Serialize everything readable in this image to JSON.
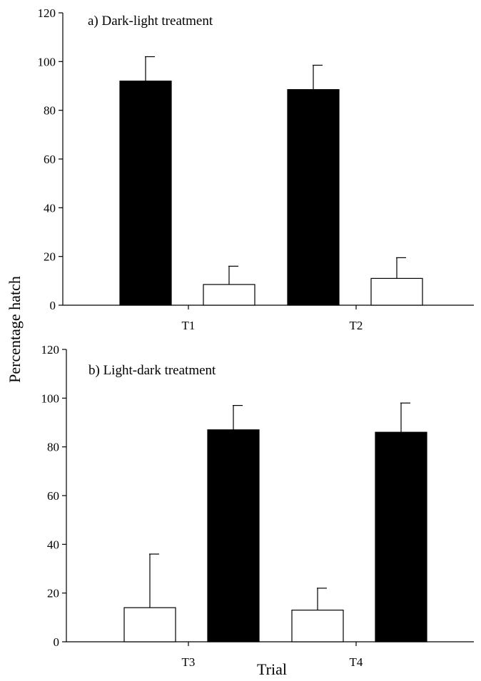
{
  "ylabel": "Percentage hatch",
  "xlabel": "Trial",
  "colors": {
    "dark": "#000000",
    "light": "#ffffff",
    "axis": "#000000"
  },
  "chart_data": [
    {
      "type": "bar",
      "title": "a) Dark-light treatment",
      "categories": [
        "T1",
        "T2"
      ],
      "ylim": [
        0,
        120
      ],
      "yticks": [
        0,
        20,
        40,
        60,
        80,
        100,
        120
      ],
      "series": [
        {
          "fill": "dark",
          "values": [
            92,
            88.5
          ],
          "errors": [
            10,
            10
          ]
        },
        {
          "fill": "light",
          "values": [
            8.5,
            11
          ],
          "errors": [
            7.5,
            8.5
          ]
        }
      ],
      "grid": false
    },
    {
      "type": "bar",
      "title": "b)  Light-dark treatment",
      "categories": [
        "T3",
        "T4"
      ],
      "ylim": [
        0,
        120
      ],
      "yticks": [
        0,
        20,
        40,
        60,
        80,
        100,
        120
      ],
      "series": [
        {
          "fill": "light",
          "values": [
            14,
            13
          ],
          "errors": [
            22,
            9
          ]
        },
        {
          "fill": "dark",
          "values": [
            87,
            86
          ],
          "errors": [
            10,
            12
          ]
        }
      ],
      "grid": false
    }
  ]
}
